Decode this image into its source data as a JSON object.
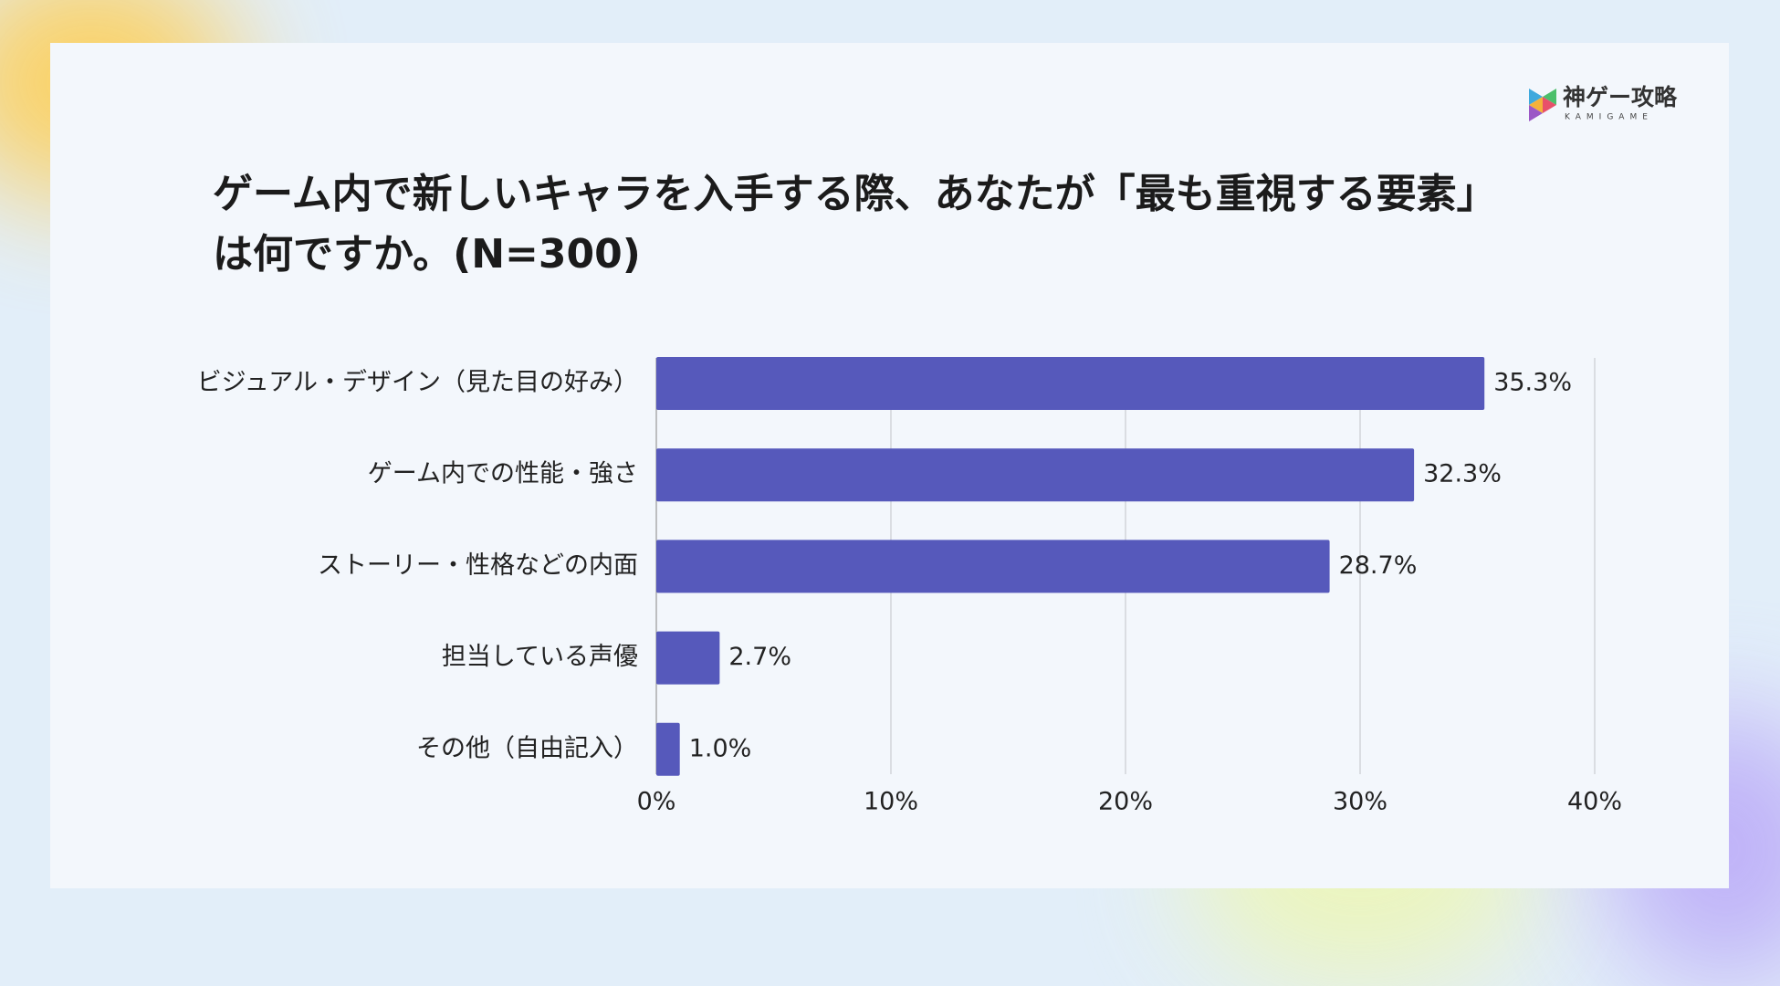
{
  "logo": {
    "name": "神ゲー攻略",
    "subname": "KAMIGAME"
  },
  "chart_data": {
    "type": "bar",
    "orientation": "horizontal",
    "title": "ゲーム内で新しいキャラを入手する際、あなたが「最も重視する要素」は何ですか。(N=300)",
    "categories": [
      "ビジュアル・デザイン（見た目の好み）",
      "ゲーム内での性能・強さ",
      "ストーリー・性格などの内面",
      "担当している声優",
      "その他（自由記入）"
    ],
    "values": [
      35.3,
      32.3,
      28.7,
      2.7,
      1.0
    ],
    "value_labels": [
      "35.3%",
      "32.3%",
      "28.7%",
      "2.7%",
      "1.0%"
    ],
    "color": "#5659bb",
    "xlim": [
      0,
      40
    ],
    "xticks": [
      {
        "value": 0,
        "label": "0%"
      },
      {
        "value": 10,
        "label": "10%"
      },
      {
        "value": 20,
        "label": "20%"
      },
      {
        "value": 30,
        "label": "30%"
      },
      {
        "value": 40,
        "label": "40%"
      }
    ],
    "grid": true
  }
}
